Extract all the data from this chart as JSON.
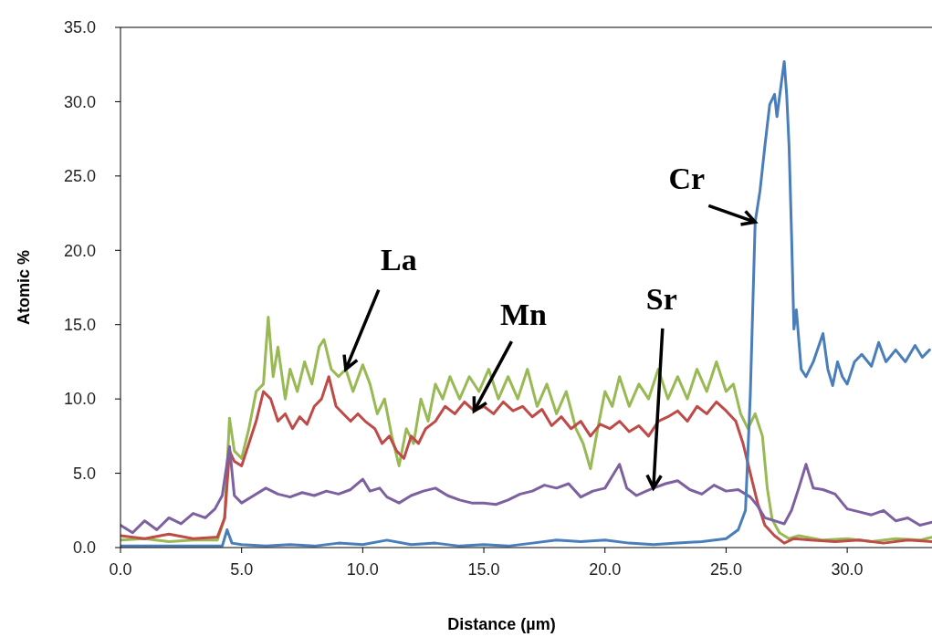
{
  "chart_data": {
    "type": "line",
    "xlabel": "Distance (µm)",
    "ylabel": "Atomic %",
    "xlim": [
      0,
      33.5
    ],
    "ylim": [
      0,
      35
    ],
    "xticks": [
      {
        "value": 0,
        "label": "0.0"
      },
      {
        "value": 5,
        "label": "5.0"
      },
      {
        "value": 10,
        "label": "10.0"
      },
      {
        "value": 15,
        "label": "15.0"
      },
      {
        "value": 20,
        "label": "20.0"
      },
      {
        "value": 25,
        "label": "25.0"
      },
      {
        "value": 30,
        "label": "30.0"
      }
    ],
    "yticks": [
      {
        "value": 0,
        "label": "0.0"
      },
      {
        "value": 5,
        "label": "5.0"
      },
      {
        "value": 10,
        "label": "10.0"
      },
      {
        "value": 15,
        "label": "15.0"
      },
      {
        "value": 20,
        "label": "20.0"
      },
      {
        "value": 25,
        "label": "25.0"
      },
      {
        "value": 30,
        "label": "30.0"
      },
      {
        "value": 35,
        "label": "35.0"
      }
    ],
    "grid": false,
    "legend": false,
    "marker": "none",
    "line_style": "solid",
    "series": [
      {
        "color": "#98b954",
        "x": [
          0,
          1,
          2,
          3,
          4,
          4.3,
          4.5,
          4.7,
          5,
          5.3,
          5.6,
          5.9,
          6.1,
          6.3,
          6.5,
          6.8,
          7,
          7.3,
          7.6,
          7.9,
          8.2,
          8.4,
          8.7,
          9,
          9.3,
          9.6,
          10,
          10.3,
          10.6,
          10.9,
          11.2,
          11.5,
          11.8,
          12.1,
          12.4,
          12.7,
          13,
          13.3,
          13.6,
          14,
          14.4,
          14.8,
          15.2,
          15.6,
          16,
          16.4,
          16.8,
          17.2,
          17.6,
          18,
          18.4,
          18.8,
          19.1,
          19.4,
          19.7,
          20,
          20.3,
          20.6,
          21,
          21.4,
          21.8,
          22.2,
          22.6,
          23,
          23.4,
          23.8,
          24.2,
          24.6,
          25,
          25.3,
          25.6,
          25.9,
          26.2,
          26.5,
          26.7,
          26.9,
          27.2,
          27.6,
          28,
          29,
          30,
          31,
          32,
          33,
          33.5
        ],
        "values": [
          0.5,
          0.6,
          0.4,
          0.5,
          0.5,
          2,
          8.7,
          6.5,
          6,
          8,
          10.5,
          11,
          15.5,
          11.5,
          13.5,
          10,
          12,
          10.5,
          12.5,
          11,
          13.5,
          14,
          12,
          11.5,
          12,
          10.5,
          12.3,
          11,
          9,
          10,
          7.5,
          5.5,
          8,
          7,
          10,
          8.5,
          11,
          10,
          11.5,
          10,
          11.5,
          10.5,
          12,
          10,
          11.5,
          10,
          12,
          9.5,
          11,
          9,
          10.5,
          8,
          7,
          5.3,
          8,
          10.5,
          9.5,
          11.5,
          9.5,
          11,
          10,
          12,
          10,
          11.5,
          10,
          12,
          10.5,
          12.5,
          10.5,
          11,
          9,
          8,
          9,
          7.5,
          4,
          1.9,
          1,
          0.6,
          0.8,
          0.5,
          0.6,
          0.4,
          0.6,
          0.5,
          0.7
        ]
      },
      {
        "color": "#be4b48",
        "x": [
          0,
          1,
          2,
          3,
          4,
          4.3,
          4.5,
          4.7,
          5,
          5.3,
          5.6,
          5.9,
          6.2,
          6.5,
          6.8,
          7.1,
          7.4,
          7.7,
          8,
          8.3,
          8.6,
          8.9,
          9.2,
          9.5,
          9.8,
          10.1,
          10.5,
          10.8,
          11.1,
          11.4,
          11.7,
          12,
          12.3,
          12.6,
          13,
          13.4,
          13.8,
          14.2,
          14.6,
          15,
          15.4,
          15.8,
          16.2,
          16.6,
          17,
          17.4,
          17.8,
          18.2,
          18.6,
          19,
          19.4,
          19.8,
          20.2,
          20.6,
          21,
          21.4,
          21.8,
          22.2,
          22.6,
          23,
          23.4,
          23.8,
          24.2,
          24.6,
          25,
          25.4,
          25.7,
          26,
          26.3,
          26.6,
          27,
          27.4,
          27.8,
          28.5,
          29.5,
          30.5,
          31.5,
          32.5,
          33.5
        ],
        "values": [
          0.8,
          0.6,
          0.9,
          0.6,
          0.7,
          2,
          6.5,
          5.8,
          5.5,
          7,
          8.5,
          10.5,
          10,
          8.5,
          9,
          8,
          8.8,
          8.3,
          9.5,
          10,
          11.5,
          9.5,
          9,
          8.5,
          9,
          8.5,
          8,
          7,
          7.5,
          6.5,
          6,
          7.5,
          7,
          8,
          8.5,
          9.5,
          9,
          9.8,
          9.2,
          9.5,
          9,
          9.8,
          9.2,
          9.5,
          8.8,
          9.3,
          8.2,
          8.8,
          8,
          8.5,
          7.5,
          8.3,
          8,
          8.5,
          7.8,
          8.2,
          7.5,
          8.5,
          8.8,
          9.2,
          8.5,
          9.5,
          9,
          9.8,
          9.2,
          8.5,
          7,
          5,
          3,
          1.5,
          0.8,
          0.3,
          0.6,
          0.5,
          0.4,
          0.5,
          0.3,
          0.5,
          0.4
        ]
      },
      {
        "color": "#7d60a0",
        "x": [
          0,
          0.5,
          1,
          1.5,
          2,
          2.5,
          3,
          3.5,
          3.9,
          4.2,
          4.5,
          4.7,
          5,
          5.5,
          6,
          6.5,
          7,
          7.5,
          8,
          8.5,
          9,
          9.5,
          10,
          10.3,
          10.7,
          11,
          11.5,
          12,
          12.5,
          13,
          13.5,
          14,
          14.5,
          15,
          15.5,
          16,
          16.5,
          17,
          17.5,
          18,
          18.5,
          19,
          19.5,
          20,
          20.3,
          20.6,
          20.9,
          21.3,
          21.7,
          22,
          22.5,
          23,
          23.5,
          24,
          24.5,
          25,
          25.5,
          26,
          26.3,
          26.6,
          27,
          27.4,
          27.7,
          28,
          28.3,
          28.6,
          29,
          29.5,
          30,
          30.5,
          31,
          31.5,
          32,
          32.5,
          33,
          33.5
        ],
        "values": [
          1.5,
          1,
          1.8,
          1.2,
          2,
          1.6,
          2.3,
          2,
          2.6,
          3.5,
          6.8,
          3.5,
          3,
          3.5,
          4,
          3.6,
          3.4,
          3.7,
          3.5,
          3.8,
          3.6,
          3.9,
          4.6,
          3.8,
          4,
          3.4,
          3,
          3.5,
          3.8,
          4,
          3.5,
          3.2,
          3,
          3,
          2.9,
          3.2,
          3.6,
          3.8,
          4.2,
          4,
          4.3,
          3.4,
          3.8,
          4,
          4.8,
          5.6,
          4,
          3.5,
          3.8,
          4,
          4.3,
          4.5,
          3.9,
          3.6,
          4.2,
          3.8,
          3.9,
          3.4,
          2.8,
          2,
          1.8,
          1.6,
          2.5,
          4,
          5.6,
          4,
          3.9,
          3.6,
          2.6,
          2.4,
          2.2,
          2.5,
          1.8,
          2,
          1.5,
          1.7
        ]
      },
      {
        "color": "#4a7ebb",
        "x": [
          0,
          4.2,
          4.4,
          4.6,
          5,
          6,
          7,
          8,
          9,
          10,
          11,
          12,
          13,
          14,
          15,
          16,
          17,
          18,
          19,
          20,
          21,
          22,
          23,
          24,
          25,
          25.5,
          25.8,
          26,
          26.2,
          26.4,
          26.6,
          26.8,
          27,
          27.1,
          27.3,
          27.4,
          27.5,
          27.6,
          27.7,
          27.8,
          27.9,
          28.1,
          28.3,
          28.6,
          29,
          29.2,
          29.4,
          29.6,
          29.8,
          30,
          30.3,
          30.6,
          31,
          31.3,
          31.6,
          32,
          32.4,
          32.8,
          33.1,
          33.4
        ],
        "values": [
          0.1,
          0.1,
          1.2,
          0.3,
          0.2,
          0.1,
          0.2,
          0.1,
          0.3,
          0.2,
          0.5,
          0.2,
          0.3,
          0.1,
          0.2,
          0.1,
          0.3,
          0.5,
          0.4,
          0.5,
          0.3,
          0.2,
          0.3,
          0.4,
          0.6,
          1.2,
          2.5,
          10.3,
          21.9,
          24,
          27,
          29.8,
          30.5,
          29,
          31.5,
          32.7,
          30.5,
          27,
          21.2,
          14.7,
          16,
          12,
          11.5,
          12.5,
          14.4,
          12,
          10.9,
          12.5,
          11.5,
          11,
          12.5,
          13,
          12.2,
          13.8,
          12.5,
          13.3,
          12.5,
          13.6,
          12.8,
          13.3
        ]
      }
    ],
    "annotations": [
      {
        "text": "La",
        "x": 9.3,
        "y": 12
      },
      {
        "text": "Mn",
        "x": 14.6,
        "y": 9.2
      },
      {
        "text": "Sr",
        "x": 22,
        "y": 4
      },
      {
        "text": "Cr",
        "x": 26.2,
        "y": 21.9
      }
    ]
  }
}
